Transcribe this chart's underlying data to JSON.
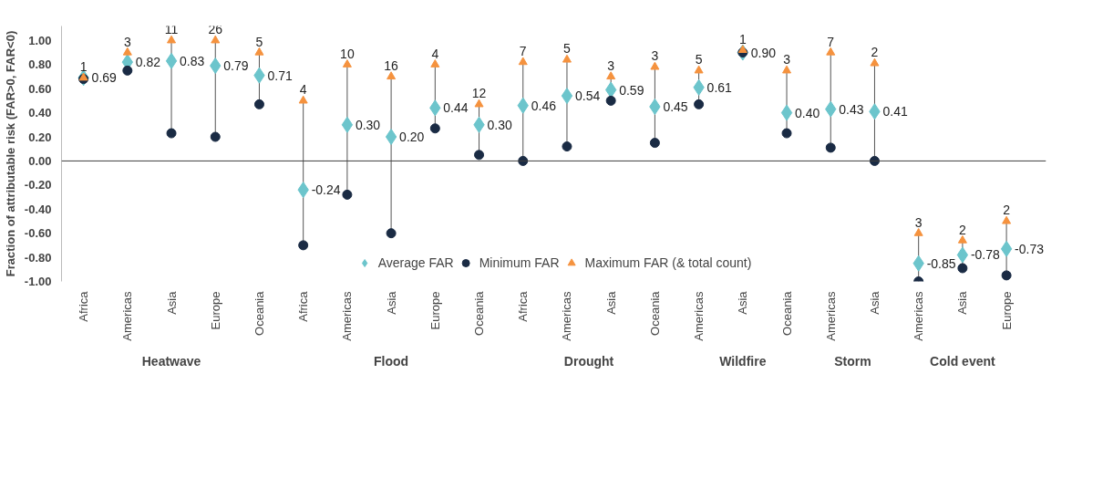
{
  "chart_data": {
    "type": "scatter",
    "ylabel": "Fraction of attributable risk (FAR>0, FAR<0)",
    "categories": [
      "Africa",
      "Americas",
      "Asia",
      "Europe",
      "Oceania",
      "Africa",
      "Americas",
      "Asia",
      "Europe",
      "Oceania",
      "Africa",
      "Americas",
      "Asia",
      "Oceania",
      "Americas",
      "Asia",
      "Oceania",
      "Americas",
      "Asia",
      "Americas",
      "Asia",
      "Europe"
    ],
    "annotations": [
      "Heatwave",
      "Flood",
      "Drought",
      "Wildfire",
      "Storm",
      "Cold event",
      "1",
      "3",
      "11",
      "26",
      "5",
      "4",
      "10",
      "16",
      "4",
      "12",
      "7",
      "5",
      "3",
      "3",
      "5",
      "1",
      "3",
      "7",
      "2",
      "3",
      "2",
      "2"
    ],
    "series": [
      {
        "name": "Minimum FAR",
        "color": "#1a2b44",
        "marker": "circle",
        "values": [
          0.68,
          0.75,
          0.23,
          0.2,
          0.47,
          -0.7,
          -0.28,
          -0.6,
          0.27,
          0.05,
          0.0,
          0.12,
          0.5,
          0.15,
          0.47,
          0.9,
          0.23,
          0.11,
          0.0,
          -1.0,
          -0.89,
          -0.95
        ]
      },
      {
        "name": "Maximum FAR (& total count)",
        "color": "#f5923e",
        "marker": "triangle",
        "values": [
          0.69,
          0.9,
          1.0,
          1.0,
          0.9,
          0.5,
          0.8,
          0.7,
          0.8,
          0.47,
          0.82,
          0.84,
          0.7,
          0.78,
          0.75,
          0.92,
          0.75,
          0.9,
          0.81,
          -0.6,
          -0.66,
          -0.5
        ]
      },
      {
        "name": "Average FAR",
        "color": "#6cc5cc",
        "marker": "diamond",
        "values": [
          0.69,
          0.82,
          0.83,
          0.79,
          0.71,
          -0.24,
          0.3,
          0.2,
          0.44,
          0.3,
          0.46,
          0.54,
          0.59,
          0.45,
          0.61,
          0.9,
          0.4,
          0.43,
          0.41,
          -0.85,
          -0.78,
          -0.73
        ],
        "value_labels": [
          "0.69",
          "0.82",
          "0.83",
          "0.79",
          "0.71",
          "-0.24",
          "0.30",
          "0.20",
          "0.44",
          "0.30",
          "0.46",
          "0.54",
          "0.59",
          "0.45",
          "0.61",
          "0.90",
          "0.40",
          "0.43",
          "0.41",
          "-0.85",
          "-0.78",
          "-0.73"
        ]
      }
    ],
    "ylim": [
      -1.0,
      1.12
    ],
    "yticks": [
      {
        "value": -1.0,
        "label": "-1.00"
      },
      {
        "value": -0.8,
        "label": "-0.80"
      },
      {
        "value": -0.6,
        "label": "-0.60"
      },
      {
        "value": -0.4,
        "label": "-0.40"
      },
      {
        "value": -0.2,
        "label": "-0.20"
      },
      {
        "value": 0,
        "label": "0.00"
      },
      {
        "value": 0.2,
        "label": "0.20"
      },
      {
        "value": 0.4,
        "label": "0.40"
      },
      {
        "value": 0.6,
        "label": "0.60"
      },
      {
        "value": 0.8,
        "label": "0.80"
      },
      {
        "value": 1.0,
        "label": "1.00"
      }
    ],
    "ref_lines": [
      {
        "axis": "y",
        "value": 0,
        "color": "#404040"
      }
    ],
    "grid": false,
    "legend": "bottom"
  }
}
